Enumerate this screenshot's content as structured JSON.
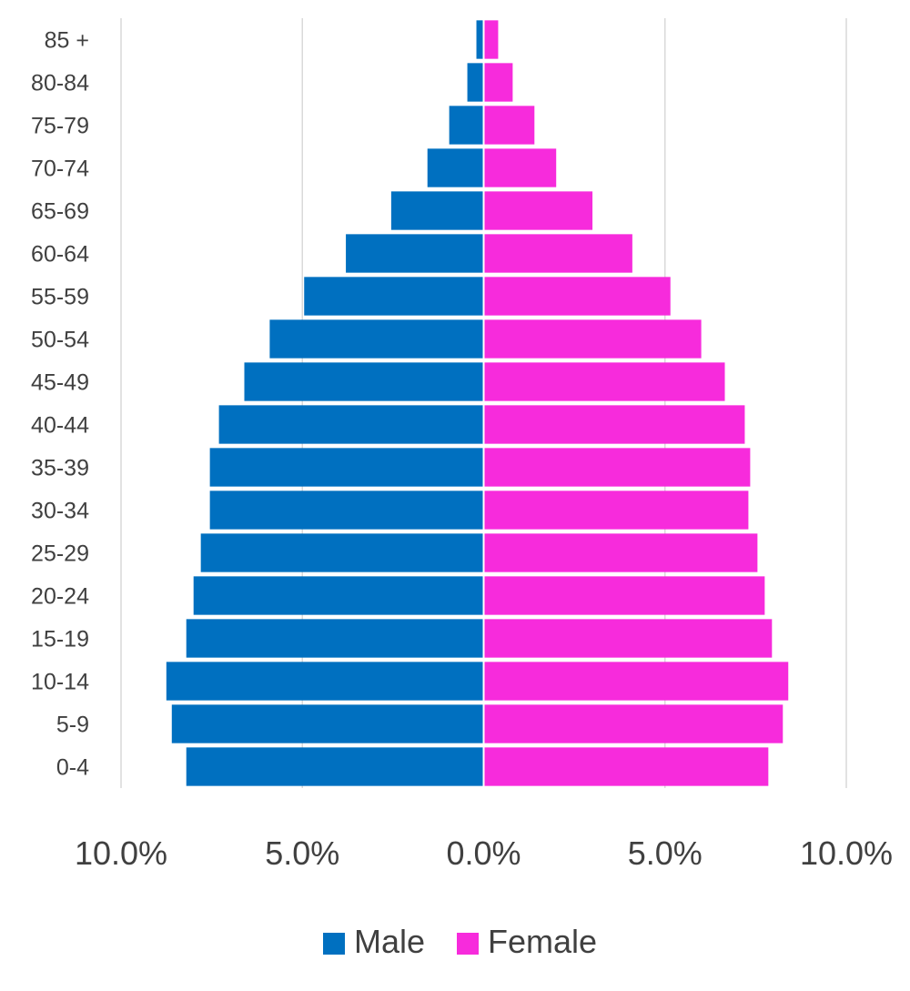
{
  "chart_data": {
    "type": "bar",
    "orientation": "horizontal",
    "chart_style": "population-pyramid",
    "categories": [
      "85 +",
      "80-84",
      "75-79",
      "70-74",
      "65-69",
      "60-64",
      "55-59",
      "50-54",
      "45-49",
      "40-44",
      "35-39",
      "30-34",
      "25-29",
      "20-24",
      "15-19",
      "10-14",
      "5-9",
      "0-4"
    ],
    "series": [
      {
        "name": "Male",
        "color": "#0070c0",
        "direction": "left",
        "values": [
          0.2,
          0.45,
          0.95,
          1.55,
          2.55,
          3.8,
          4.95,
          5.9,
          6.6,
          7.3,
          7.55,
          7.55,
          7.8,
          8.0,
          8.2,
          8.75,
          8.6,
          8.2
        ]
      },
      {
        "name": "Female",
        "color": "#f72bdc",
        "direction": "right",
        "values": [
          0.4,
          0.8,
          1.4,
          2.0,
          3.0,
          4.1,
          5.15,
          6.0,
          6.65,
          7.2,
          7.35,
          7.3,
          7.55,
          7.75,
          7.95,
          8.4,
          8.25,
          7.85
        ]
      }
    ],
    "xlim": [
      -10,
      10
    ],
    "x_ticks": [
      -10,
      -5,
      0,
      5,
      10
    ],
    "x_tick_labels": [
      "10.0%",
      "5.0%",
      "0.0%",
      "5.0%",
      "10.0%"
    ],
    "grid": true,
    "legend_position": "bottom",
    "title": "",
    "xlabel": "",
    "ylabel": ""
  }
}
